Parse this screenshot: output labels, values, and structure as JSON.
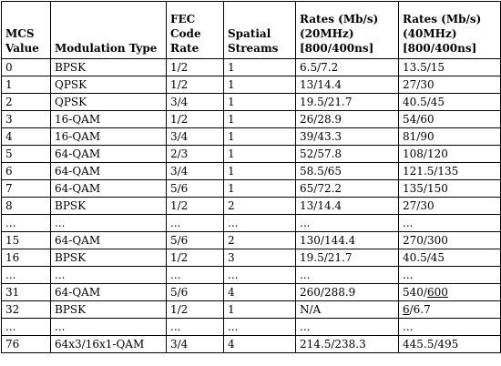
{
  "table": {
    "headers": [
      [
        "MCS",
        "Value"
      ],
      [
        "Modulation Type"
      ],
      [
        "FEC",
        "Code",
        "Rate"
      ],
      [
        "Spatial",
        "Streams"
      ],
      [
        "Rates (Mb/s)",
        "(20MHz)",
        "[800/400ns]"
      ],
      [
        "Rates (Mb/s)",
        "(40MHz)",
        "[800/400ns]"
      ]
    ],
    "rows": [
      [
        "0",
        "BPSK",
        "1/2",
        "1",
        "6.5/7.2",
        "13.5/15"
      ],
      [
        "1",
        "QPSK",
        "1/2",
        "1",
        "13/14.4",
        "27/30"
      ],
      [
        "2",
        "QPSK",
        "3/4",
        "1",
        "19.5/21.7",
        "40.5/45"
      ],
      [
        "3",
        "16-QAM",
        "1/2",
        "1",
        "26/28.9",
        "54/60"
      ],
      [
        "4",
        "16-QAM",
        "3/4",
        "1",
        "39/43.3",
        "81/90"
      ],
      [
        "5",
        "64-QAM",
        "2/3",
        "1",
        "52/57.8",
        "108/120"
      ],
      [
        "6",
        "64-QAM",
        "3/4",
        "1",
        "58.5/65",
        "121.5/135"
      ],
      [
        "7",
        "64-QAM",
        "5/6",
        "1",
        "65/72.2",
        "135/150"
      ],
      [
        "8",
        "BPSK",
        "1/2",
        "2",
        "13/14.4",
        "27/30"
      ],
      [
        "...",
        "...",
        "...",
        "...",
        "...",
        "..."
      ],
      [
        "15",
        "64-QAM",
        "5/6",
        "2",
        "130/144.4",
        "270/300"
      ],
      [
        "16",
        "BPSK",
        "1/2",
        "3",
        "19.5/21.7",
        "40.5/45"
      ],
      [
        "...",
        "...",
        "...",
        "...",
        "...",
        "..."
      ],
      [
        "31",
        "64-QAM",
        "5/6",
        "4",
        "260/288.9",
        "540/600"
      ],
      [
        "32",
        "BPSK",
        "1/2",
        "1",
        "N/A",
        "6/6.7"
      ],
      [
        "...",
        "...",
        "...",
        "...",
        "...",
        "..."
      ],
      [
        "76",
        "64x3/16x1-QAM",
        "3/4",
        "4",
        "214.5/238.3",
        "445.5/495"
      ]
    ],
    "underlined": [
      {
        "row": 13,
        "col": 5,
        "part": "600"
      },
      {
        "row": 14,
        "col": 5,
        "part": "6"
      }
    ]
  }
}
